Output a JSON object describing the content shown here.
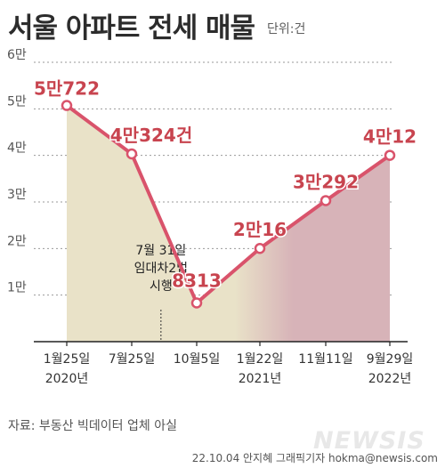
{
  "header": {
    "title": "서울 아파트 전세 매물",
    "unit": "단위:건"
  },
  "chart_data": {
    "type": "line",
    "title": "서울 아파트 전세 매물",
    "unit": "단위:건",
    "x": [
      "2020-01-25",
      "2020-07-25",
      "2020-10-05",
      "2021-01-22",
      "2021-11-11",
      "2022-09-29"
    ],
    "x_tick_lines": [
      [
        "1월25일",
        "2020년"
      ],
      [
        "7월25일",
        ""
      ],
      [
        "10월5일",
        ""
      ],
      [
        "1월22일",
        "2021년"
      ],
      [
        "11월11일",
        ""
      ],
      [
        "9월29일",
        "2022년"
      ]
    ],
    "values": [
      50722,
      40324,
      8313,
      20016,
      30292,
      40012
    ],
    "value_labels": [
      "5만722",
      "4만324건",
      "8313",
      "2만16",
      "3만292",
      "4만12"
    ],
    "y_ticks": [
      {
        "value": 10000,
        "label": "1만"
      },
      {
        "value": 20000,
        "label": "2만"
      },
      {
        "value": 30000,
        "label": "3만"
      },
      {
        "value": 40000,
        "label": "4만"
      },
      {
        "value": 50000,
        "label": "5만"
      },
      {
        "value": 60000,
        "label": "6만"
      }
    ],
    "ylim": [
      0,
      60000
    ],
    "grid": true,
    "line_color": "#d9536b",
    "area_before_color": "#e9e2c8",
    "area_after_color": "#d7b3b8",
    "annotation": {
      "x_index": 1.45,
      "lines": [
        "7월 31일",
        "임대차2법",
        "시행"
      ]
    }
  },
  "footer": {
    "source": "자료: 부동산 빅데이터 업체 아실",
    "credit": "22.10.04 안지혜 그래픽기자  hokma@newsis.com",
    "watermark": "NEWSIS"
  }
}
